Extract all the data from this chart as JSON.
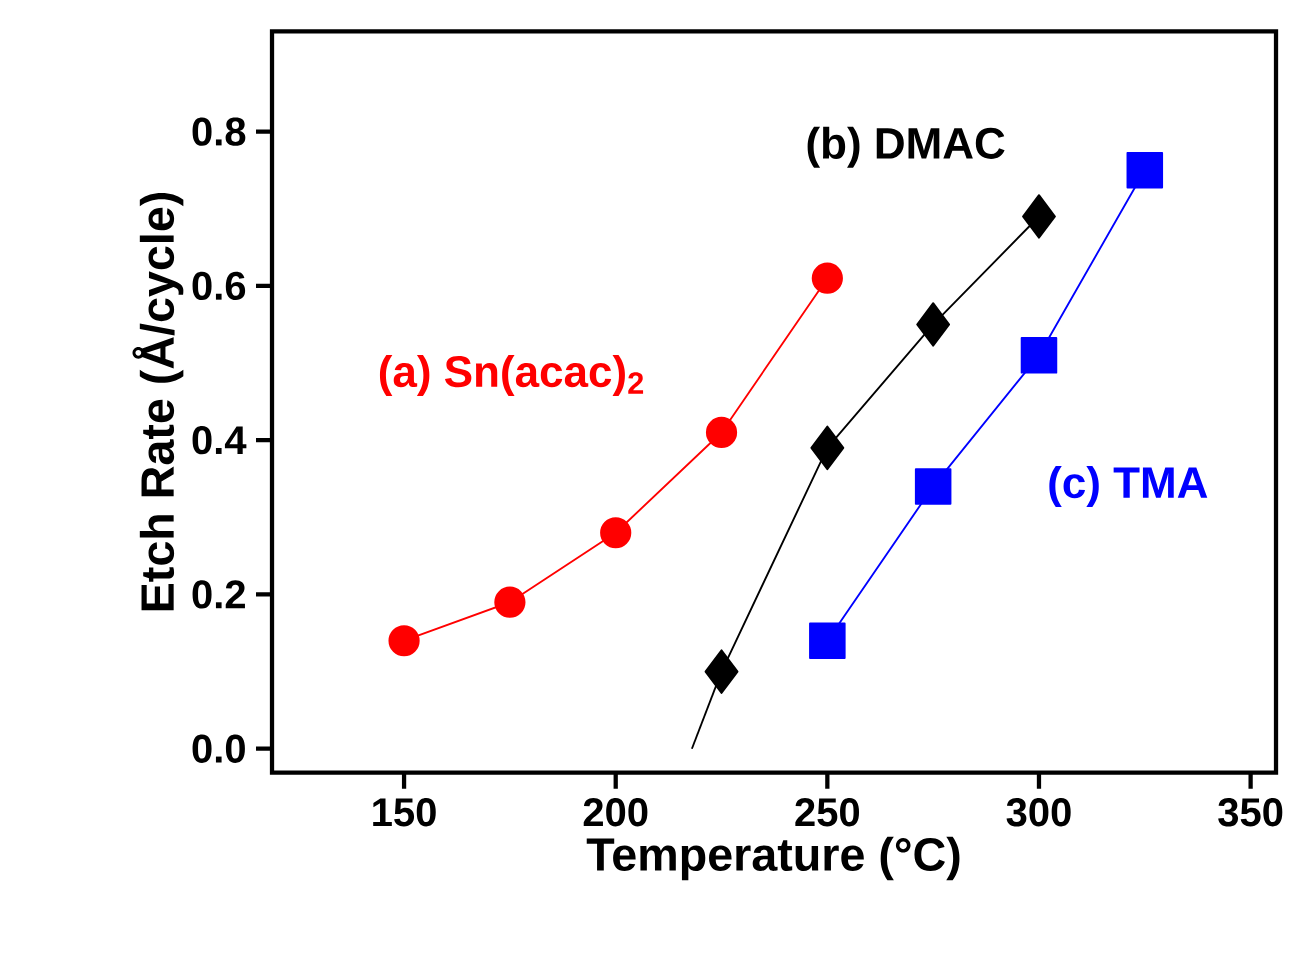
{
  "chart_data": {
    "type": "line",
    "xlabel": "Temperature (°C)",
    "ylabel": "Etch Rate (Å/cycle)",
    "xlim": [
      118.8,
      356
    ],
    "ylim": [
      -0.031,
      0.93
    ],
    "xticks": [
      150,
      200,
      250,
      300,
      350
    ],
    "yticks": [
      {
        "value": 0,
        "label": "0.0"
      },
      0.2,
      0.4,
      0.6,
      0.8
    ],
    "grid": false,
    "series": [
      {
        "name": "(a) Sn(acac)$_{2}$",
        "color": "#ff0000",
        "marker": "circle",
        "x": [
          150,
          175,
          200,
          225,
          250
        ],
        "values": [
          0.14,
          0.19,
          0.28,
          0.41,
          0.61
        ]
      },
      {
        "name": "(b) DMAC",
        "color": "#000000",
        "marker": "diamond",
        "x": [
          225,
          250,
          275,
          300
        ],
        "values": [
          0.1,
          0.39,
          0.55,
          0.69
        ]
      },
      {
        "color": "#000000",
        "marker": "none",
        "x": [
          218,
          225
        ],
        "values": [
          0.0,
          0.1
        ]
      },
      {
        "name": "(c) TMA",
        "color": "#0000ff",
        "marker": "square",
        "x": [
          250,
          275,
          300,
          325
        ],
        "values": [
          0.14,
          0.34,
          0.51,
          0.75
        ]
      }
    ]
  }
}
